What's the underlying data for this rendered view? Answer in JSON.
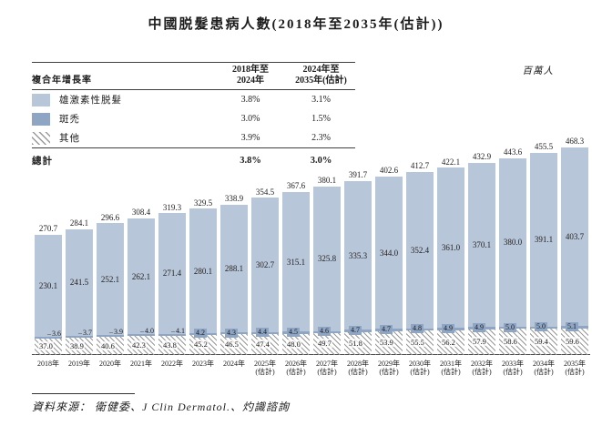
{
  "title": "中國脱髮患病人數(2018年至2035年(估計))",
  "unit_label": "百萬人",
  "cagr_table": {
    "row_header": "複合年增長率",
    "col_headers": [
      {
        "line1": "2018年至",
        "line2": "2024年"
      },
      {
        "line1": "2024年至",
        "line2": "2035年(估計)"
      }
    ],
    "rows": [
      {
        "label": "雄激素性脱髮",
        "cagr_2018_2024": "3.8%",
        "cagr_2024_2035": "3.1%"
      },
      {
        "label": "斑禿",
        "cagr_2018_2024": "3.0%",
        "cagr_2024_2035": "1.5%"
      },
      {
        "label": "其他",
        "cagr_2018_2024": "3.9%",
        "cagr_2024_2035": "2.3%"
      }
    ],
    "total_row": {
      "label": "總計",
      "cagr_2018_2024": "3.8%",
      "cagr_2024_2035": "3.0%"
    }
  },
  "chart_data": {
    "type": "bar",
    "stacked": true,
    "title": "中國脱髮患病人數(2018年至2035年(估計))",
    "unit": "百萬人",
    "ylim": [
      0,
      480
    ],
    "grid": false,
    "legend_position": "top-left-table",
    "categories": [
      {
        "label": "2018年",
        "note": ""
      },
      {
        "label": "2019年",
        "note": ""
      },
      {
        "label": "2020年",
        "note": ""
      },
      {
        "label": "2021年",
        "note": ""
      },
      {
        "label": "2022年",
        "note": ""
      },
      {
        "label": "2023年",
        "note": ""
      },
      {
        "label": "2024年",
        "note": ""
      },
      {
        "label": "2025年",
        "note": "(估計)"
      },
      {
        "label": "2026年",
        "note": "(估計)"
      },
      {
        "label": "2027年",
        "note": "(估計)"
      },
      {
        "label": "2028年",
        "note": "(估計)"
      },
      {
        "label": "2029年",
        "note": "(估計)"
      },
      {
        "label": "2030年",
        "note": "(估計)"
      },
      {
        "label": "2031年",
        "note": "(估計)"
      },
      {
        "label": "2032年",
        "note": "(估計)"
      },
      {
        "label": "2033年",
        "note": "(估計)"
      },
      {
        "label": "2034年",
        "note": "(估計)"
      },
      {
        "label": "2035年",
        "note": "(估計)"
      }
    ],
    "series": [
      {
        "name": "雄激素性脱髮",
        "color": "#b8c6da",
        "values": [
          230.1,
          241.5,
          252.1,
          262.1,
          271.4,
          280.1,
          288.1,
          302.7,
          315.1,
          325.8,
          335.3,
          344.0,
          352.4,
          361.0,
          370.1,
          380.0,
          391.1,
          403.7
        ]
      },
      {
        "name": "斑禿",
        "color": "#8ea5c3",
        "values": [
          3.6,
          3.7,
          3.9,
          4.0,
          4.1,
          4.2,
          4.3,
          4.4,
          4.5,
          4.6,
          4.7,
          4.7,
          4.8,
          4.9,
          4.9,
          5.0,
          5.0,
          5.1
        ]
      },
      {
        "name": "其他",
        "color": "hatched-gray",
        "values": [
          37.0,
          38.9,
          40.6,
          42.3,
          43.8,
          45.2,
          46.5,
          47.4,
          48.0,
          49.7,
          51.8,
          53.9,
          55.5,
          56.2,
          57.9,
          58.6,
          59.4,
          59.6
        ]
      }
    ],
    "totals": [
      270.7,
      284.1,
      296.6,
      308.4,
      319.3,
      329.5,
      338.9,
      354.5,
      367.6,
      380.1,
      391.7,
      402.6,
      412.7,
      422.1,
      432.9,
      443.6,
      455.5,
      468.3
    ]
  },
  "source": "資料來源： 衛健委、J Clin Dermatol.、灼識諮詢",
  "colors": {
    "bar_light": "#b8c6da",
    "bar_medium": "#8ea5c3",
    "hatch_line": "#9a9a9a",
    "rule": "#3f3f3f",
    "text": "#1c1c1c"
  }
}
